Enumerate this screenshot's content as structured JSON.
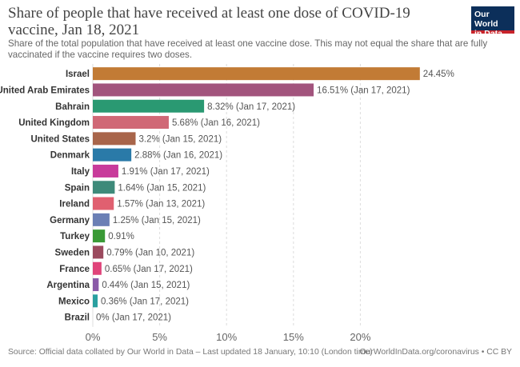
{
  "header": {
    "title": "Share of people that have received at least one dose of COVID-19 vaccine, Jan 18, 2021",
    "subtitle": "Share of the total population that have received at least one vaccine dose. This may not equal the share that are fully vaccinated if the vaccine requires two doses."
  },
  "logo": {
    "line1": "Our World",
    "line2": "in Data",
    "bg_color": "#0c2f5a",
    "accent_color": "#c8232a"
  },
  "footer": {
    "source": "Source: Official data collated by Our World in Data – Last updated 18 January, 10:10 (London time)",
    "credit": "OurWorldInData.org/coronavirus • CC BY"
  },
  "chart_data": {
    "type": "bar",
    "orientation": "horizontal",
    "title": "Share of people that have received at least one dose of COVID-19 vaccine, Jan 18, 2021",
    "xlim": [
      0,
      25
    ],
    "xticks": [
      0,
      5,
      10,
      15,
      20
    ],
    "xtick_labels": [
      "0%",
      "5%",
      "10%",
      "15%",
      "20%"
    ],
    "grid": "vertical dashed",
    "categories": [
      "Israel",
      "United Arab Emirates",
      "Bahrain",
      "United Kingdom",
      "United States",
      "Denmark",
      "Italy",
      "Spain",
      "Ireland",
      "Germany",
      "Turkey",
      "Sweden",
      "France",
      "Argentina",
      "Mexico",
      "Brazil"
    ],
    "values": [
      24.45,
      16.51,
      8.32,
      5.68,
      3.2,
      2.88,
      1.91,
      1.64,
      1.57,
      1.25,
      0.91,
      0.79,
      0.65,
      0.44,
      0.36,
      0
    ],
    "labels": [
      "24.45%",
      "16.51% (Jan 17, 2021)",
      "8.32% (Jan 17, 2021)",
      "5.68% (Jan 16, 2021)",
      "3.2% (Jan 15, 2021)",
      "2.88% (Jan 16, 2021)",
      "1.91% (Jan 17, 2021)",
      "1.64% (Jan 15, 2021)",
      "1.57% (Jan 13, 2021)",
      "1.25% (Jan 15, 2021)",
      "0.91%",
      "0.79% (Jan 10, 2021)",
      "0.65% (Jan 17, 2021)",
      "0.44% (Jan 15, 2021)",
      "0.36% (Jan 17, 2021)",
      "0% (Jan 17, 2021)"
    ],
    "colors": [
      "#c27b35",
      "#a2547d",
      "#2a9972",
      "#d06876",
      "#a8654a",
      "#2a7aa8",
      "#c83b9b",
      "#3e8a7a",
      "#e06070",
      "#6b7fb5",
      "#3a9a36",
      "#9b4a5e",
      "#e0447a",
      "#8a5aa8",
      "#2aa0a0",
      "#888888"
    ]
  }
}
